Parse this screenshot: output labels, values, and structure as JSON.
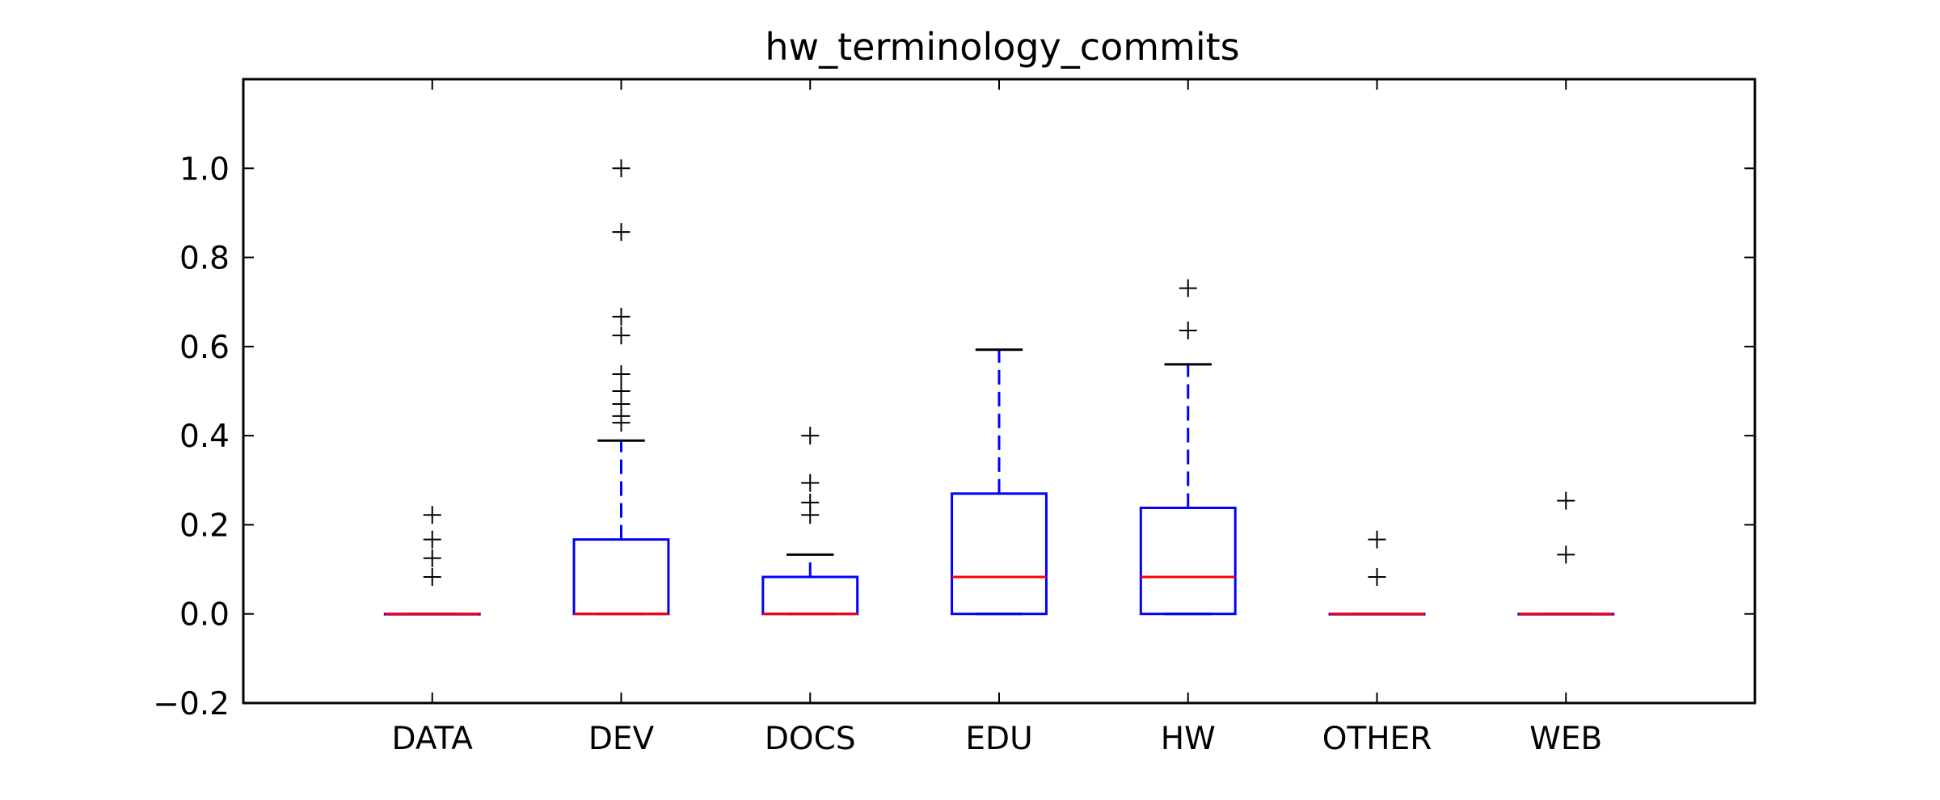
{
  "chart_data": {
    "type": "box",
    "title": "hw_terminology_commits",
    "xlabel": "",
    "ylabel": "",
    "ylim": [
      -0.2,
      1.2
    ],
    "yticks": [
      -0.2,
      0.0,
      0.2,
      0.4,
      0.6,
      0.8,
      1.0
    ],
    "ytick_labels": [
      "−0.2",
      "0.0",
      "0.2",
      "0.4",
      "0.6",
      "0.8",
      "1.0"
    ],
    "grid": false,
    "categories": [
      "DATA",
      "DEV",
      "DOCS",
      "EDU",
      "HW",
      "OTHER",
      "WEB"
    ],
    "boxes": [
      {
        "name": "DATA",
        "whislo": 0.0,
        "q1": 0.0,
        "med": 0.0,
        "q3": 0.0,
        "whishi": 0.0,
        "fliers": [
          0.083,
          0.125,
          0.167,
          0.222
        ]
      },
      {
        "name": "DEV",
        "whislo": 0.0,
        "q1": 0.0,
        "med": 0.0,
        "q3": 0.167,
        "whishi": 0.389,
        "fliers": [
          0.429,
          0.444,
          0.471,
          0.5,
          0.538,
          0.625,
          0.667,
          0.857,
          1.0
        ]
      },
      {
        "name": "DOCS",
        "whislo": 0.0,
        "q1": 0.0,
        "med": 0.0,
        "q3": 0.083,
        "whishi": 0.133,
        "fliers": [
          0.222,
          0.25,
          0.294,
          0.4
        ]
      },
      {
        "name": "EDU",
        "whislo": 0.0,
        "q1": 0.0,
        "med": 0.083,
        "q3": 0.27,
        "whishi": 0.593,
        "fliers": []
      },
      {
        "name": "HW",
        "whislo": 0.0,
        "q1": 0.0,
        "med": 0.083,
        "q3": 0.238,
        "whishi": 0.56,
        "fliers": [
          0.636,
          0.731
        ]
      },
      {
        "name": "OTHER",
        "whislo": 0.0,
        "q1": 0.0,
        "med": 0.0,
        "q3": 0.0,
        "whishi": 0.0,
        "fliers": [
          0.083,
          0.167
        ]
      },
      {
        "name": "WEB",
        "whislo": 0.0,
        "q1": 0.0,
        "med": 0.0,
        "q3": 0.0,
        "whishi": 0.0,
        "fliers": [
          0.133,
          0.254
        ]
      }
    ],
    "colors": {
      "box": "#0000ff",
      "median": "#ff0000",
      "whisker": "#0000ff",
      "cap": "#000000",
      "flier": "#000000",
      "axes": "#000000"
    }
  }
}
